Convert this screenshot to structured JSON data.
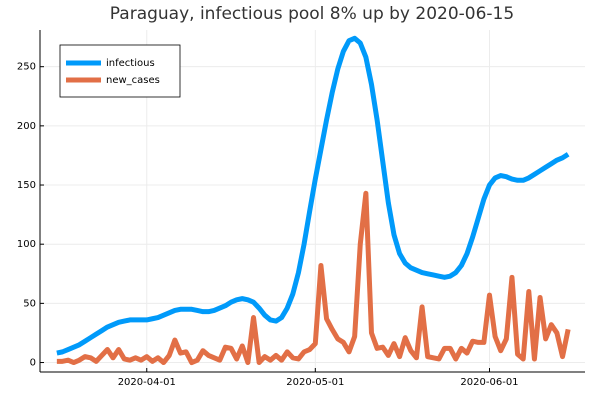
{
  "chart_data": {
    "type": "line",
    "title": "Paraguay, infectious pool 8% up by 2020-06-15",
    "x": [
      "2020-03-16",
      "2020-03-17",
      "2020-03-18",
      "2020-03-19",
      "2020-03-20",
      "2020-03-21",
      "2020-03-22",
      "2020-03-23",
      "2020-03-24",
      "2020-03-25",
      "2020-03-26",
      "2020-03-27",
      "2020-03-28",
      "2020-03-29",
      "2020-03-30",
      "2020-03-31",
      "2020-04-01",
      "2020-04-02",
      "2020-04-03",
      "2020-04-04",
      "2020-04-05",
      "2020-04-06",
      "2020-04-07",
      "2020-04-08",
      "2020-04-09",
      "2020-04-10",
      "2020-04-11",
      "2020-04-12",
      "2020-04-13",
      "2020-04-14",
      "2020-04-15",
      "2020-04-16",
      "2020-04-17",
      "2020-04-18",
      "2020-04-19",
      "2020-04-20",
      "2020-04-21",
      "2020-04-22",
      "2020-04-23",
      "2020-04-24",
      "2020-04-25",
      "2020-04-26",
      "2020-04-27",
      "2020-04-28",
      "2020-04-29",
      "2020-04-30",
      "2020-05-01",
      "2020-05-02",
      "2020-05-03",
      "2020-05-04",
      "2020-05-05",
      "2020-05-06",
      "2020-05-07",
      "2020-05-08",
      "2020-05-09",
      "2020-05-10",
      "2020-05-11",
      "2020-05-12",
      "2020-05-13",
      "2020-05-14",
      "2020-05-15",
      "2020-05-16",
      "2020-05-17",
      "2020-05-18",
      "2020-05-19",
      "2020-05-20",
      "2020-05-21",
      "2020-05-22",
      "2020-05-23",
      "2020-05-24",
      "2020-05-25",
      "2020-05-26",
      "2020-05-27",
      "2020-05-28",
      "2020-05-29",
      "2020-05-30",
      "2020-05-31",
      "2020-06-01",
      "2020-06-02",
      "2020-06-03",
      "2020-06-04",
      "2020-06-05",
      "2020-06-06",
      "2020-06-07",
      "2020-06-08",
      "2020-06-09",
      "2020-06-10",
      "2020-06-11",
      "2020-06-12",
      "2020-06-13",
      "2020-06-14",
      "2020-06-15"
    ],
    "series": [
      {
        "name": "infectious",
        "color": "#009afa",
        "values": [
          8,
          9,
          11,
          13,
          15,
          18,
          21,
          24,
          27,
          30,
          32,
          34,
          35,
          36,
          36,
          36,
          36,
          37,
          38,
          40,
          42,
          44,
          45,
          45,
          45,
          44,
          43,
          43,
          44,
          46,
          48,
          51,
          53,
          54,
          53,
          51,
          46,
          40,
          36,
          35,
          38,
          46,
          58,
          76,
          100,
          128,
          155,
          180,
          205,
          228,
          248,
          263,
          272,
          274,
          270,
          258,
          235,
          205,
          170,
          135,
          108,
          92,
          84,
          80,
          78,
          76,
          75,
          74,
          73,
          72,
          73,
          76,
          82,
          92,
          106,
          122,
          138,
          150,
          156,
          158,
          157,
          155,
          154,
          154,
          156,
          159,
          162,
          165,
          168,
          171,
          173,
          176
        ]
      },
      {
        "name": "new_cases",
        "color": "#e26f46",
        "values": [
          1,
          1,
          2,
          0,
          2,
          5,
          4,
          1,
          6,
          11,
          4,
          11,
          3,
          2,
          4,
          2,
          5,
          1,
          4,
          0,
          6,
          19,
          8,
          9,
          0,
          2,
          10,
          6,
          4,
          2,
          13,
          12,
          3,
          14,
          0,
          38,
          0,
          5,
          2,
          6,
          2,
          9,
          4,
          3,
          9,
          11,
          16,
          82,
          37,
          28,
          20,
          17,
          9,
          22,
          100,
          143,
          25,
          12,
          13,
          6,
          16,
          5,
          21,
          10,
          4,
          47,
          5,
          4,
          3,
          12,
          12,
          3,
          12,
          8,
          18,
          17,
          17,
          57,
          22,
          10,
          20,
          72,
          7,
          3,
          60,
          3,
          55,
          20,
          32,
          25,
          5,
          28
        ]
      }
    ],
    "xlim": [
      "2020-03-13",
      "2020-06-18"
    ],
    "xticks": [
      "2020-04-01",
      "2020-05-01",
      "2020-06-01"
    ],
    "ylim": [
      -8,
      281
    ],
    "yticks": [
      0,
      50,
      100,
      150,
      200,
      250
    ],
    "grid": true,
    "legend": "top-left"
  }
}
